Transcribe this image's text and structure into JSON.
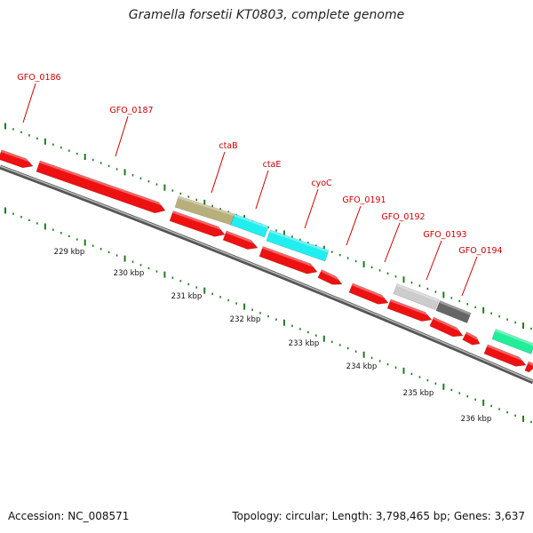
{
  "title": "Gramella forsetii KT0803, complete genome",
  "footer": {
    "accession": "Accession: NC_008571",
    "summary": "Topology: circular; Length: 3,798,465 bp; Genes: 3,637"
  },
  "colors": {
    "gene_default": "#ee1111",
    "cta_b": "#b8b07c",
    "cyan": "#22eef0",
    "light_gray": "#cccccc",
    "dark_gray": "#666666",
    "teal": "#22ee99",
    "label": "#cc0000",
    "tick": "#1f7a1f",
    "backbone": "#777777"
  },
  "ruler_labels": [
    "229 kbp",
    "230 kbp",
    "231 kbp",
    "232 kbp",
    "233 kbp",
    "234 kbp",
    "235 kbp",
    "236 kbp"
  ],
  "gene_labels": [
    "GFO_0186",
    "GFO_0187",
    "ctaB",
    "ctaE",
    "cyoC",
    "GFO_0191",
    "GFO_0192",
    "GFO_0193",
    "GFO_0194"
  ]
}
